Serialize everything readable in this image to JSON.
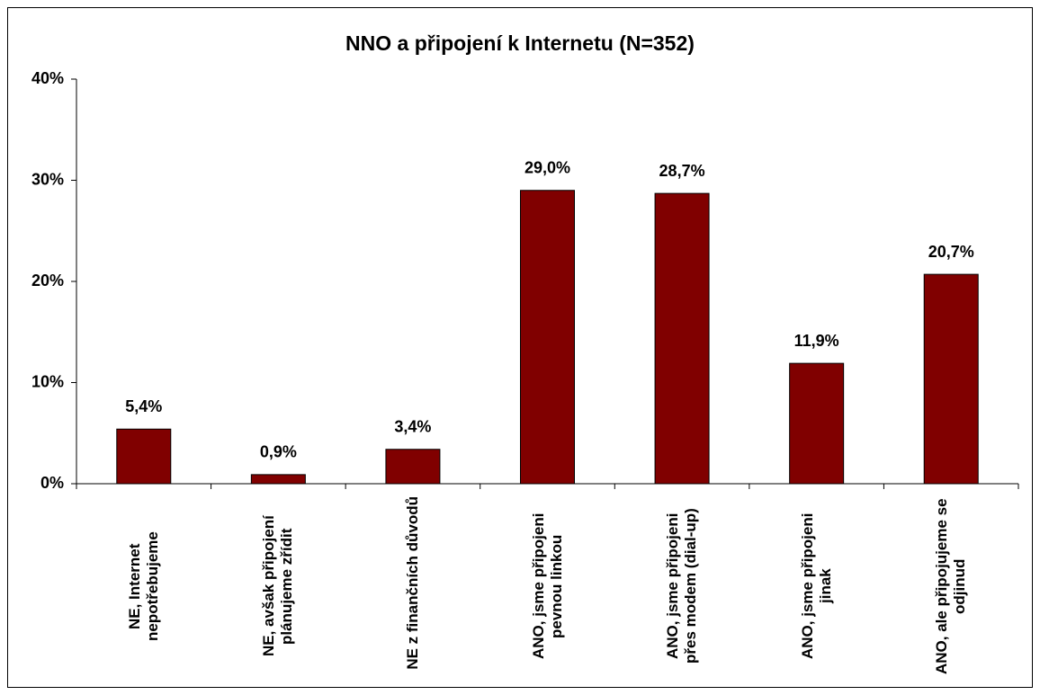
{
  "chart_data": {
    "type": "bar",
    "title": "NNO a připojení k Internetu (N=352)",
    "categories": [
      "NE, Internet nepotřebujeme",
      "NE, avšak připojení plánujeme zřídit",
      "NE z finančních důvodů",
      "ANO, jsme připojeni pevnou linkou",
      "ANO, jsme připojeni přes modem (dial-up)",
      "ANO, jsme připojeni jinak",
      "ANO, ale připojujeme se odjinud"
    ],
    "values": [
      5.4,
      0.9,
      3.4,
      29.0,
      28.7,
      11.9,
      20.7
    ],
    "value_labels": [
      "5,4%",
      "0,9%",
      "3,4%",
      "29,0%",
      "28,7%",
      "11,9%",
      "20,7%"
    ],
    "color": "#800000",
    "ylim": [
      0,
      40
    ],
    "yticks": [
      {
        "value": 0,
        "label": "0%"
      },
      {
        "value": 10,
        "label": "10%"
      },
      {
        "value": 20,
        "label": "20%"
      },
      {
        "value": 30,
        "label": "30%"
      },
      {
        "value": 40,
        "label": "40%"
      }
    ],
    "grid": false
  }
}
